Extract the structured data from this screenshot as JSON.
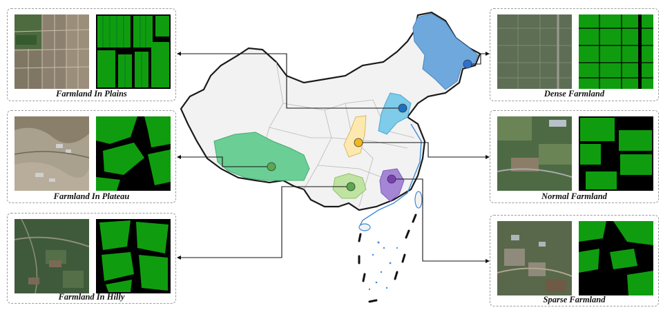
{
  "panels": {
    "plains": {
      "caption": "Farmland In Plains"
    },
    "plateau": {
      "caption": "Farmland In Plateau"
    },
    "hilly": {
      "caption": "Farmland  In Hilly"
    },
    "dense": {
      "caption": "Dense Farmland"
    },
    "normal": {
      "caption": "Normal Farmland"
    },
    "sparse": {
      "caption": "Sparse Farmland"
    }
  },
  "colors": {
    "mask_green": "#0f9d0f",
    "mask_black": "#000000",
    "province_blue": "#6fa8dc",
    "province_lightblue": "#7ecbea",
    "province_yellow": "#fde9b0",
    "province_green": "#6bcf95",
    "province_lightgreen": "#bfe3a0",
    "province_purple": "#a586d6",
    "map_fill": "#f2f2f2",
    "sea_border": "#3c8ad9"
  },
  "markers": [
    {
      "name": "heilongjiang-marker",
      "color": "#2f6fd0"
    },
    {
      "name": "hebei-marker",
      "color": "#1f6fc0"
    },
    {
      "name": "shanxi-marker",
      "color": "#f3b71f"
    },
    {
      "name": "tibet-marker",
      "color": "#5aa84f"
    },
    {
      "name": "guizhou-marker",
      "color": "#5aa84f"
    },
    {
      "name": "hunan-marker",
      "color": "#7b3fb5"
    }
  ]
}
